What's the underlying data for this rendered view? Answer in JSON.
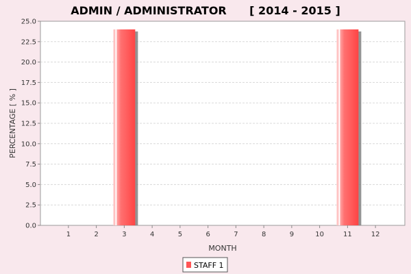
{
  "chart_data": {
    "type": "bar",
    "title": "ADMIN / ADMINISTRATOR      [ 2014 - 2015 ]",
    "xlabel": "MONTH",
    "ylabel": "PERCENTAGE [ % ]",
    "categories": [
      "1",
      "2",
      "3",
      "4",
      "5",
      "6",
      "7",
      "8",
      "9",
      "10",
      "11",
      "12"
    ],
    "ylim": [
      0,
      25
    ],
    "yticks": [
      "0.0",
      "2.5",
      "5.0",
      "7.5",
      "10.0",
      "12.5",
      "15.0",
      "17.5",
      "20.0",
      "22.5",
      "25.0"
    ],
    "series": [
      {
        "name": "STAFF 1",
        "color": "#ff5555",
        "values": [
          0,
          0,
          24,
          0,
          0,
          0,
          0,
          0,
          0,
          0,
          24,
          0
        ]
      }
    ],
    "grid": true,
    "legend": "bottom"
  }
}
